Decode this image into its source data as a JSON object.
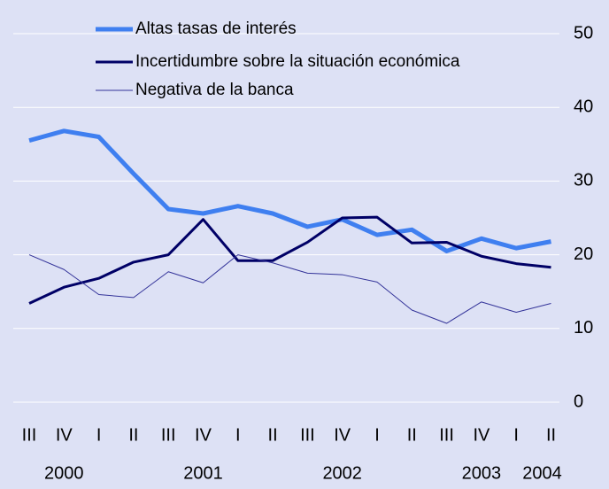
{
  "chart_data": {
    "type": "line",
    "categories": [
      "III",
      "IV",
      "I",
      "II",
      "III",
      "IV",
      "I",
      "II",
      "III",
      "IV",
      "I",
      "II",
      "III",
      "IV",
      "I",
      "II"
    ],
    "year_labels": [
      null,
      "2000",
      null,
      null,
      null,
      "2001",
      null,
      null,
      null,
      "2002",
      null,
      null,
      null,
      "2003",
      null,
      "2004"
    ],
    "series": [
      {
        "name": "Altas tasas de interés",
        "color": "#3f7ff0",
        "values": [
          35.5,
          36.8,
          36,
          31,
          26.2,
          25.6,
          26.6,
          25.6,
          23.8,
          24.8,
          22.7,
          23.4,
          20.5,
          22.2,
          20.9,
          21.8
        ]
      },
      {
        "name": "Incertidumbre sobre la situación económica",
        "color": "#000066",
        "values": [
          13.4,
          15.6,
          16.8,
          19,
          20,
          24.8,
          19.2,
          19.2,
          21.7,
          25,
          25.1,
          21.6,
          21.7,
          19.8,
          18.8,
          18.3
        ]
      },
      {
        "name": "Negativa de la banca",
        "color": "#333399",
        "values": [
          20,
          18,
          14.6,
          14.2,
          17.7,
          16.2,
          20,
          18.9,
          17.5,
          17.3,
          16.3,
          12.5,
          10.7,
          13.6,
          12.2,
          13.4
        ]
      }
    ],
    "ylim": [
      0,
      50
    ],
    "yticks": [
      0,
      10,
      20,
      30,
      40,
      50
    ],
    "grid": true
  }
}
